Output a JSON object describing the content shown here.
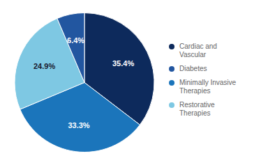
{
  "chart_data": {
    "type": "pie",
    "categories": [
      "Cardiac and\nVascular",
      "Minimally Invasive\nTherapies",
      "Restorative\nTherapies",
      "Diabetes"
    ],
    "values": [
      35.4,
      33.3,
      24.9,
      6.4
    ],
    "value_labels": [
      "35.4%",
      "33.3%",
      "24.9%",
      "6.4%"
    ],
    "colors": [
      "#0d2a5c",
      "#1b75bb",
      "#7ec8e3",
      "#2256a0"
    ],
    "data_labels": true,
    "legend": "right"
  }
}
